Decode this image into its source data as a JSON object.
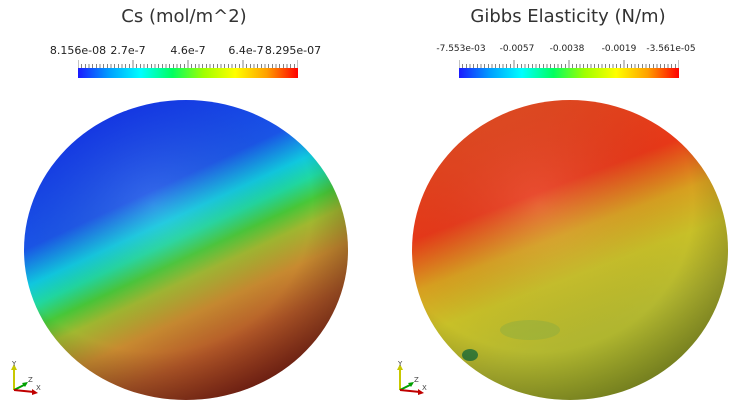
{
  "left": {
    "title": "Cs (mol/m^2)",
    "colorbar": {
      "min": "8.156e-08",
      "ticks": [
        "2.7e-7",
        "4.6e-7",
        "6.4e-7"
      ],
      "max": "8.295e-07"
    }
  },
  "right": {
    "title": "Gibbs Elasticity (N/m)",
    "colorbar": {
      "min": "-7.553e-03",
      "ticks": [
        "-0.0057",
        "-0.0038",
        "-0.0019"
      ],
      "max": "-3.561e-05"
    }
  },
  "axes_labels": {
    "y": "Y",
    "z": "Z",
    "x": "X"
  },
  "colors": {
    "colormap": [
      "#1a1aff",
      "#00a0ff",
      "#00ffff",
      "#00ff60",
      "#a0ff00",
      "#ffff00",
      "#ffa000",
      "#ff0000"
    ],
    "axis_y": "#c8c800",
    "axis_z": "#00a000",
    "axis_x": "#c00000"
  }
}
